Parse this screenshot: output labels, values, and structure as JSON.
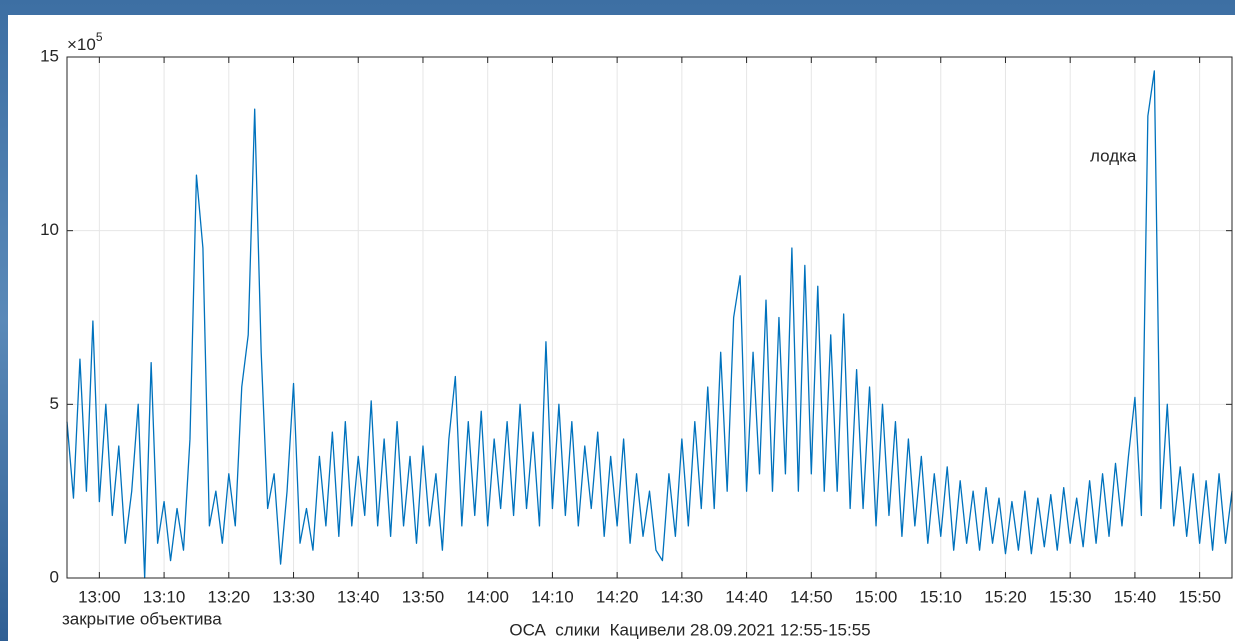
{
  "chart_data": {
    "type": "line",
    "xlabel": "ОСА  слики  Кацивели 28.09.2021 12:55-15:55",
    "y_multiplier": {
      "base": "×10",
      "exponent": "5"
    },
    "annotations": [
      "лодка",
      "закрытие объектива"
    ],
    "color": "#0072bd",
    "grid": true,
    "xlim": [
      775,
      955
    ],
    "ylim": [
      0,
      15
    ],
    "yticks": [
      0,
      5,
      10,
      15
    ],
    "xticks": [
      {
        "value": 780,
        "label": "13:00"
      },
      {
        "value": 790,
        "label": "13:10"
      },
      {
        "value": 800,
        "label": "13:20"
      },
      {
        "value": 810,
        "label": "13:30"
      },
      {
        "value": 820,
        "label": "13:40"
      },
      {
        "value": 830,
        "label": "13:50"
      },
      {
        "value": 840,
        "label": "14:00"
      },
      {
        "value": 850,
        "label": "14:10"
      },
      {
        "value": 860,
        "label": "14:20"
      },
      {
        "value": 870,
        "label": "14:30"
      },
      {
        "value": 880,
        "label": "14:40"
      },
      {
        "value": 890,
        "label": "14:50"
      },
      {
        "value": 900,
        "label": "15:00"
      },
      {
        "value": 910,
        "label": "15:10"
      },
      {
        "value": 920,
        "label": "15:20"
      },
      {
        "value": 930,
        "label": "15:30"
      },
      {
        "value": 940,
        "label": "15:40"
      },
      {
        "value": 950,
        "label": "15:50"
      }
    ],
    "x": [
      775,
      776,
      777,
      778,
      779,
      780,
      781,
      782,
      783,
      784,
      785,
      786,
      787,
      788,
      789,
      790,
      791,
      792,
      793,
      794,
      795,
      796,
      797,
      798,
      799,
      800,
      801,
      802,
      803,
      804,
      805,
      806,
      807,
      808,
      809,
      810,
      811,
      812,
      813,
      814,
      815,
      816,
      817,
      818,
      819,
      820,
      821,
      822,
      823,
      824,
      825,
      826,
      827,
      828,
      829,
      830,
      831,
      832,
      833,
      834,
      835,
      836,
      837,
      838,
      839,
      840,
      841,
      842,
      843,
      844,
      845,
      846,
      847,
      848,
      849,
      850,
      851,
      852,
      853,
      854,
      855,
      856,
      857,
      858,
      859,
      860,
      861,
      862,
      863,
      864,
      865,
      866,
      867,
      868,
      869,
      870,
      871,
      872,
      873,
      874,
      875,
      876,
      877,
      878,
      879,
      880,
      881,
      882,
      883,
      884,
      885,
      886,
      887,
      888,
      889,
      890,
      891,
      892,
      893,
      894,
      895,
      896,
      897,
      898,
      899,
      900,
      901,
      902,
      903,
      904,
      905,
      906,
      907,
      908,
      909,
      910,
      911,
      912,
      913,
      914,
      915,
      916,
      917,
      918,
      919,
      920,
      921,
      922,
      923,
      924,
      925,
      926,
      927,
      928,
      929,
      930,
      931,
      932,
      933,
      934,
      935,
      936,
      937,
      938,
      939,
      940,
      941,
      942,
      943,
      944,
      945,
      946,
      947,
      948,
      949,
      950,
      951,
      952,
      953,
      954,
      955
    ],
    "values": [
      4.5,
      2.3,
      6.3,
      2.5,
      7.4,
      2.2,
      5.0,
      1.8,
      3.8,
      1.0,
      2.5,
      5.0,
      0.0,
      6.2,
      1.0,
      2.2,
      0.5,
      2.0,
      0.8,
      4.0,
      11.6,
      9.5,
      1.5,
      2.5,
      1.0,
      3.0,
      1.5,
      5.5,
      7.0,
      13.5,
      6.5,
      2.0,
      3.0,
      0.4,
      2.5,
      5.6,
      1.0,
      2.0,
      0.8,
      3.5,
      1.5,
      4.2,
      1.2,
      4.5,
      1.5,
      3.5,
      1.8,
      5.1,
      1.5,
      4.0,
      1.2,
      4.5,
      1.5,
      3.5,
      1.0,
      3.8,
      1.5,
      3.0,
      0.8,
      4.0,
      5.8,
      1.5,
      4.5,
      1.8,
      4.8,
      1.5,
      4.0,
      2.0,
      4.5,
      1.8,
      5.0,
      2.0,
      4.2,
      1.5,
      6.8,
      2.0,
      5.0,
      1.8,
      4.5,
      1.5,
      3.8,
      2.0,
      4.2,
      1.2,
      3.5,
      1.5,
      4.0,
      1.0,
      3.0,
      1.2,
      2.5,
      0.8,
      0.5,
      3.0,
      1.2,
      4.0,
      1.5,
      4.5,
      2.0,
      5.5,
      2.0,
      6.5,
      2.5,
      7.5,
      8.7,
      2.5,
      6.5,
      3.0,
      8.0,
      2.5,
      7.5,
      3.0,
      9.5,
      2.5,
      9.0,
      3.0,
      8.4,
      2.5,
      7.0,
      2.5,
      7.6,
      2.0,
      6.0,
      2.0,
      5.5,
      1.5,
      5.0,
      1.8,
      4.5,
      1.2,
      4.0,
      1.5,
      3.5,
      1.0,
      3.0,
      1.2,
      3.2,
      0.8,
      2.8,
      1.0,
      2.5,
      0.8,
      2.6,
      1.0,
      2.3,
      0.7,
      2.2,
      0.8,
      2.5,
      0.7,
      2.3,
      0.9,
      2.4,
      0.8,
      2.6,
      1.0,
      2.3,
      0.9,
      2.8,
      1.0,
      3.0,
      1.2,
      3.3,
      1.5,
      3.5,
      5.2,
      1.8,
      13.3,
      14.6,
      2.0,
      5.0,
      1.5,
      3.2,
      1.2,
      3.0,
      1.0,
      2.8,
      0.8,
      3.0,
      1.0,
      2.5
    ]
  }
}
